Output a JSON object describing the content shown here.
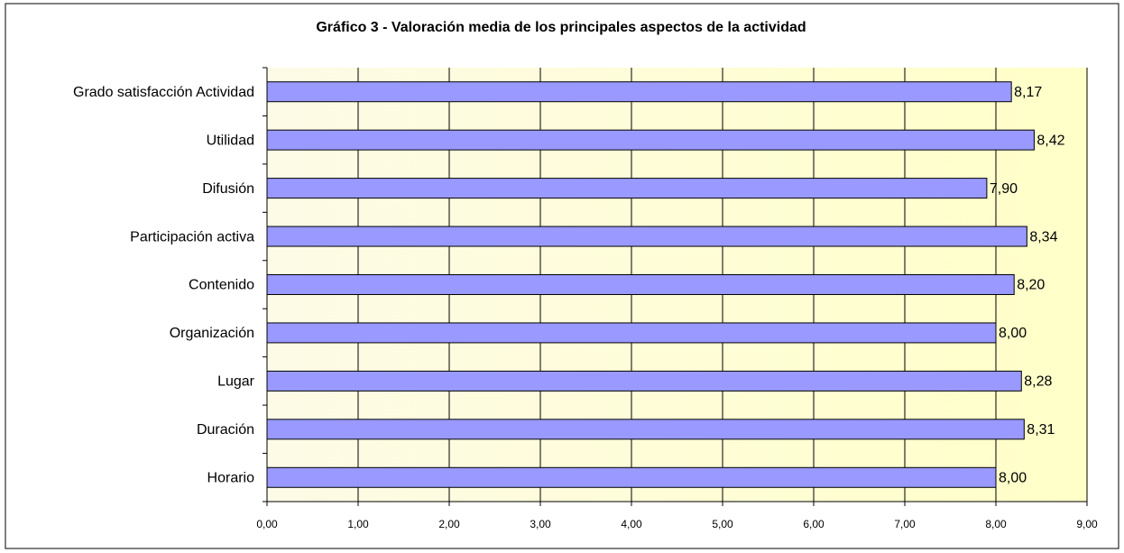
{
  "chart_data": {
    "type": "bar",
    "orientation": "horizontal",
    "title": "Gráfico 3 - Valoración media de los principales aspectos de la actividad",
    "categories": [
      "Grado satisfacción Actividad",
      "Utilidad",
      "Difusión",
      "Participación activa",
      "Contenido",
      "Organización",
      "Lugar",
      "Duración",
      "Horario"
    ],
    "values": [
      8.17,
      8.42,
      7.9,
      8.34,
      8.2,
      8.0,
      8.28,
      8.31,
      8.0
    ],
    "value_labels": [
      "8,17",
      "8,42",
      "7,90",
      "8,34",
      "8,20",
      "8,00",
      "8,28",
      "8,31",
      "8,00"
    ],
    "color": "#9999ff",
    "xlim": [
      0,
      9
    ],
    "xticks": [
      {
        "value": 0,
        "label": "0,00"
      },
      {
        "value": 1,
        "label": "1,00"
      },
      {
        "value": 2,
        "label": "2,00"
      },
      {
        "value": 3,
        "label": "3,00"
      },
      {
        "value": 4,
        "label": "4,00"
      },
      {
        "value": 5,
        "label": "5,00"
      },
      {
        "value": 6,
        "label": "6,00"
      },
      {
        "value": 7,
        "label": "7,00"
      },
      {
        "value": 8,
        "label": "8,00"
      },
      {
        "value": 9,
        "label": "9,00"
      }
    ],
    "grid": true
  }
}
